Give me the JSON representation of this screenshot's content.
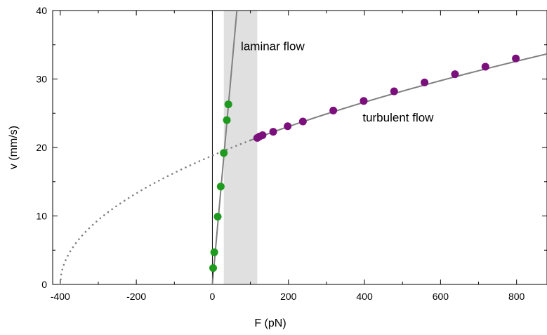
{
  "chart_data": {
    "type": "scatter",
    "title": "",
    "xlabel": "F (pN)",
    "ylabel": "v (mm/s)",
    "xlim": [
      -420,
      880
    ],
    "ylim": [
      0,
      40
    ],
    "x_ticks": [
      -400,
      -200,
      0,
      200,
      400,
      600,
      800
    ],
    "y_ticks": [
      0,
      10,
      20,
      30,
      40
    ],
    "grid": false,
    "legend": "none",
    "shaded_band": {
      "x_range": [
        30,
        118
      ],
      "color": "#e0e0e0"
    },
    "series": [
      {
        "points": [
          {
            "x": 2,
            "y": 2.4
          },
          {
            "x": 5,
            "y": 4.7
          },
          {
            "x": 14,
            "y": 9.9
          },
          {
            "x": 22,
            "y": 14.3
          },
          {
            "x": 30,
            "y": 19.2
          },
          {
            "x": 38,
            "y": 24.0
          },
          {
            "x": 42,
            "y": 26.3
          }
        ],
        "color": "#1e9a1e"
      },
      {
        "points": [
          {
            "x": 118,
            "y": 21.4
          },
          {
            "x": 124,
            "y": 21.6
          },
          {
            "x": 132,
            "y": 21.8
          },
          {
            "x": 160,
            "y": 22.3
          },
          {
            "x": 198,
            "y": 23.1
          },
          {
            "x": 238,
            "y": 23.8
          },
          {
            "x": 318,
            "y": 25.4
          },
          {
            "x": 398,
            "y": 26.8
          },
          {
            "x": 478,
            "y": 28.2
          },
          {
            "x": 558,
            "y": 29.5
          },
          {
            "x": 638,
            "y": 30.7
          },
          {
            "x": 718,
            "y": 31.8
          },
          {
            "x": 798,
            "y": 33.0
          }
        ],
        "color": "#7b0f7b"
      }
    ],
    "fits": [
      {
        "kind": "line",
        "slope": 0.621,
        "intercept": 0,
        "x_range": [
          0,
          70
        ],
        "style": "solid",
        "color": "#808080"
      },
      {
        "kind": "sqrt",
        "a": 0.941,
        "x0": -400,
        "x_range": [
          -400,
          100
        ],
        "style": "dotted",
        "color": "#808080"
      },
      {
        "kind": "sqrt",
        "a": 0.941,
        "x0": -400,
        "x_range": [
          100,
          880
        ],
        "style": "solid",
        "color": "#808080"
      }
    ],
    "annotations": [
      {
        "text": "laminar flow",
        "x": 75,
        "y": 34.2
      },
      {
        "text": "turbulent flow",
        "x": 395,
        "y": 23.8
      }
    ]
  }
}
